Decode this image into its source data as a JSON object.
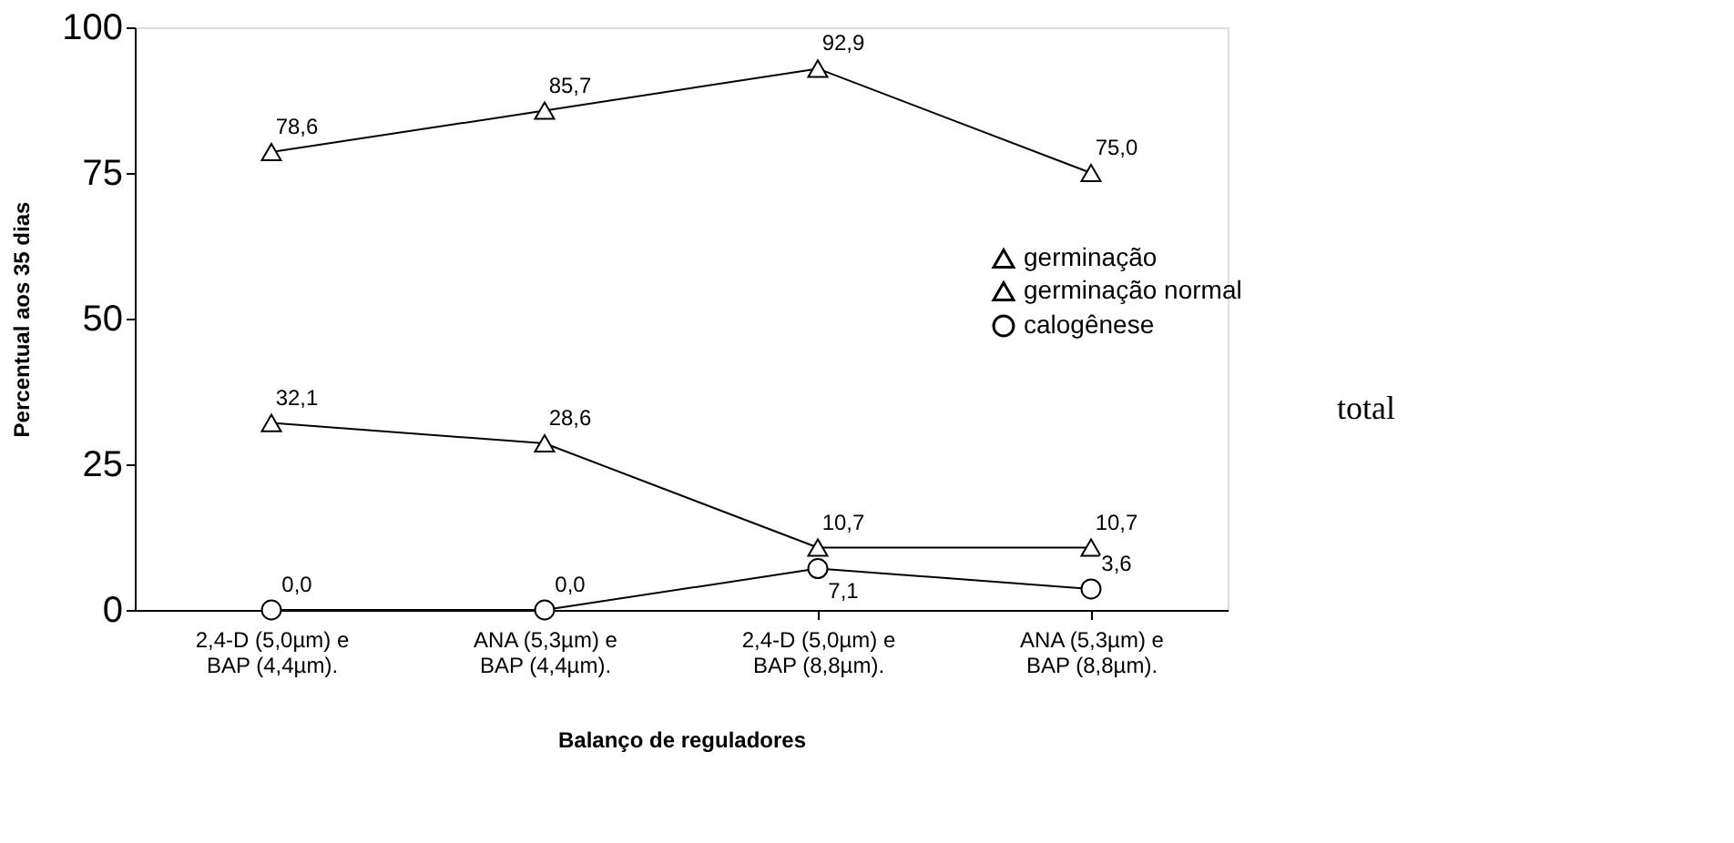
{
  "chart_data": {
    "type": "line",
    "xlabel": "Balanço de reguladores",
    "ylabel": "Percentual aos 35 dias",
    "categories": [
      "2,4-D (5,0µm) e\nBAP (4,4µm).",
      "ANA (5,3µm) e\nBAP (4,4µm).",
      "2,4-D (5,0µm) e\nBAP (8,8µm).",
      "ANA (5,3µm) e\nBAP (8,8µm)."
    ],
    "series": [
      {
        "name": "germinação",
        "color": "#000000",
        "marker": "triangle",
        "values": [
          78.6,
          85.7,
          92.9,
          75.0
        ],
        "value_labels": [
          "78,6",
          "85,7",
          "92,9",
          "75,0"
        ]
      },
      {
        "name": "germinação normal",
        "color": "#000000",
        "marker": "triangle",
        "values": [
          32.1,
          28.6,
          10.7,
          10.7
        ],
        "value_labels": [
          "32,1",
          "28,6",
          "10,7",
          "10,7"
        ]
      },
      {
        "name": "calogênese",
        "color": "#000000",
        "marker": "circle",
        "values": [
          0.0,
          0.0,
          7.1,
          3.6
        ],
        "value_labels": [
          "0,0",
          "0,0",
          "7,1",
          "3,6"
        ]
      }
    ],
    "ylim": [
      0,
      100
    ],
    "yticks": [
      0,
      25,
      50,
      75,
      100
    ],
    "grid": false,
    "legend": "right",
    "line_style": "solid",
    "annotations": [
      "total"
    ]
  }
}
